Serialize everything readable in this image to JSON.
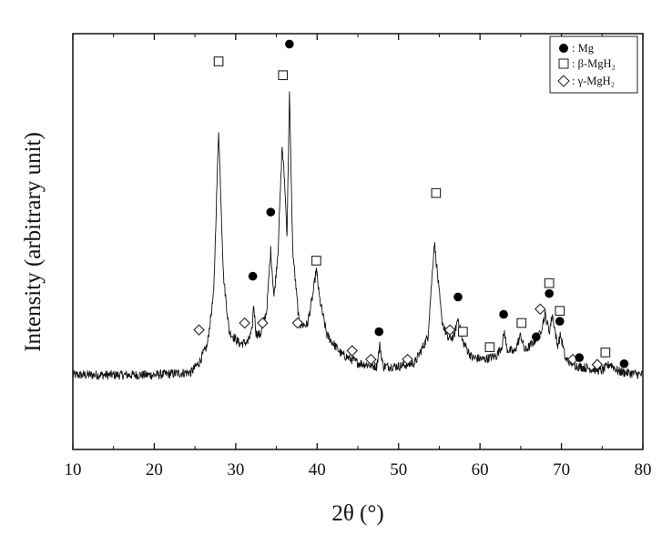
{
  "chart_data": {
    "type": "line",
    "title": "",
    "xlabel": "2θ (°)",
    "ylabel": "Intensity (arbitrary unit)",
    "xlim": [
      10,
      80
    ],
    "x_ticks": [
      10,
      20,
      30,
      40,
      50,
      60,
      70,
      80
    ],
    "y_tick_labels": false,
    "grid": false,
    "legend_position": "top-right",
    "series": [
      {
        "type": "line",
        "color": "#111111",
        "x": [
          10,
          20,
          24.5,
          25.5,
          26.5,
          27.3,
          27.9,
          28.5,
          29.2,
          30.5,
          31.5,
          32.0,
          32.2,
          32.5,
          33.0,
          33.8,
          34.3,
          34.7,
          35.2,
          35.7,
          36.0,
          36.3,
          36.6,
          37.0,
          37.8,
          38.8,
          39.5,
          39.9,
          40.3,
          41.2,
          43.0,
          45.0,
          47.3,
          47.7,
          48.1,
          50.0,
          52.0,
          53.6,
          54.4,
          54.9,
          55.3,
          56.0,
          56.8,
          57.3,
          57.8,
          59.0,
          60.5,
          62.0,
          62.7,
          63.0,
          63.3,
          64.2,
          65.0,
          65.5,
          66.2,
          67.3,
          68.0,
          68.5,
          68.9,
          69.5,
          69.9,
          70.5,
          72.0,
          75.0,
          76.0,
          77.0,
          80.0
        ],
        "y": [
          0.3,
          0.3,
          0.45,
          1.0,
          2.0,
          5.0,
          14.5,
          6.0,
          2.8,
          2.1,
          2.2,
          2.8,
          4.4,
          2.7,
          2.6,
          4.0,
          7.5,
          4.8,
          7.5,
          13.5,
          11.5,
          8.4,
          16.5,
          7.5,
          3.2,
          3.2,
          5.0,
          6.4,
          4.7,
          2.6,
          1.5,
          1.0,
          0.8,
          2.0,
          0.8,
          0.8,
          1.0,
          2.5,
          8.0,
          5.5,
          3.5,
          2.4,
          2.5,
          3.6,
          2.3,
          1.3,
          1.2,
          1.4,
          2.0,
          2.8,
          1.8,
          1.6,
          2.6,
          1.7,
          2.0,
          2.6,
          3.8,
          2.8,
          3.8,
          2.0,
          2.6,
          1.2,
          0.8,
          0.55,
          0.95,
          0.5,
          0.3
        ]
      }
    ],
    "ylim": [
      -4,
      20
    ],
    "legend": [
      {
        "symbol": "filled-circle",
        "label": "Mg"
      },
      {
        "symbol": "open-square",
        "label": "β-MgH₂"
      },
      {
        "symbol": "open-diamond",
        "label": "γ-MgH₂"
      }
    ],
    "peak_markers": [
      {
        "symbol": "open-diamond",
        "x": 25.5,
        "y": 2.9
      },
      {
        "symbol": "open-square",
        "x": 27.9,
        "y": 18.4
      },
      {
        "symbol": "filled-circle",
        "x": 32.1,
        "y": 6.0
      },
      {
        "symbol": "open-diamond",
        "x": 31.1,
        "y": 3.3
      },
      {
        "symbol": "open-diamond",
        "x": 33.3,
        "y": 3.3
      },
      {
        "symbol": "filled-circle",
        "x": 34.3,
        "y": 9.7
      },
      {
        "symbol": "open-square",
        "x": 35.8,
        "y": 17.6
      },
      {
        "symbol": "filled-circle",
        "x": 36.6,
        "y": 19.4
      },
      {
        "symbol": "open-square",
        "x": 39.9,
        "y": 6.9
      },
      {
        "symbol": "open-diamond",
        "x": 37.6,
        "y": 3.3
      },
      {
        "symbol": "open-diamond",
        "x": 44.3,
        "y": 1.7
      },
      {
        "symbol": "open-diamond",
        "x": 46.6,
        "y": 1.2
      },
      {
        "symbol": "filled-circle",
        "x": 47.6,
        "y": 2.8
      },
      {
        "symbol": "open-diamond",
        "x": 51.1,
        "y": 1.2
      },
      {
        "symbol": "open-square",
        "x": 54.6,
        "y": 10.8
      },
      {
        "symbol": "open-diamond",
        "x": 56.3,
        "y": 2.9
      },
      {
        "symbol": "filled-circle",
        "x": 57.3,
        "y": 4.8
      },
      {
        "symbol": "open-square",
        "x": 57.9,
        "y": 2.8
      },
      {
        "symbol": "open-square",
        "x": 61.2,
        "y": 1.9
      },
      {
        "symbol": "filled-circle",
        "x": 62.9,
        "y": 3.8
      },
      {
        "symbol": "open-square",
        "x": 65.1,
        "y": 3.3
      },
      {
        "symbol": "filled-circle",
        "x": 66.9,
        "y": 2.5
      },
      {
        "symbol": "open-diamond",
        "x": 67.4,
        "y": 4.1
      },
      {
        "symbol": "open-square",
        "x": 68.5,
        "y": 5.6
      },
      {
        "symbol": "filled-circle",
        "x": 68.5,
        "y": 5.0
      },
      {
        "symbol": "open-square",
        "x": 69.8,
        "y": 4.0
      },
      {
        "symbol": "filled-circle",
        "x": 69.8,
        "y": 3.4
      },
      {
        "symbol": "open-diamond",
        "x": 71.4,
        "y": 1.2
      },
      {
        "symbol": "filled-circle",
        "x": 72.2,
        "y": 1.3
      },
      {
        "symbol": "open-diamond",
        "x": 74.4,
        "y": 0.9
      },
      {
        "symbol": "open-square",
        "x": 75.4,
        "y": 1.6
      },
      {
        "symbol": "filled-circle",
        "x": 77.7,
        "y": 0.95
      }
    ]
  }
}
